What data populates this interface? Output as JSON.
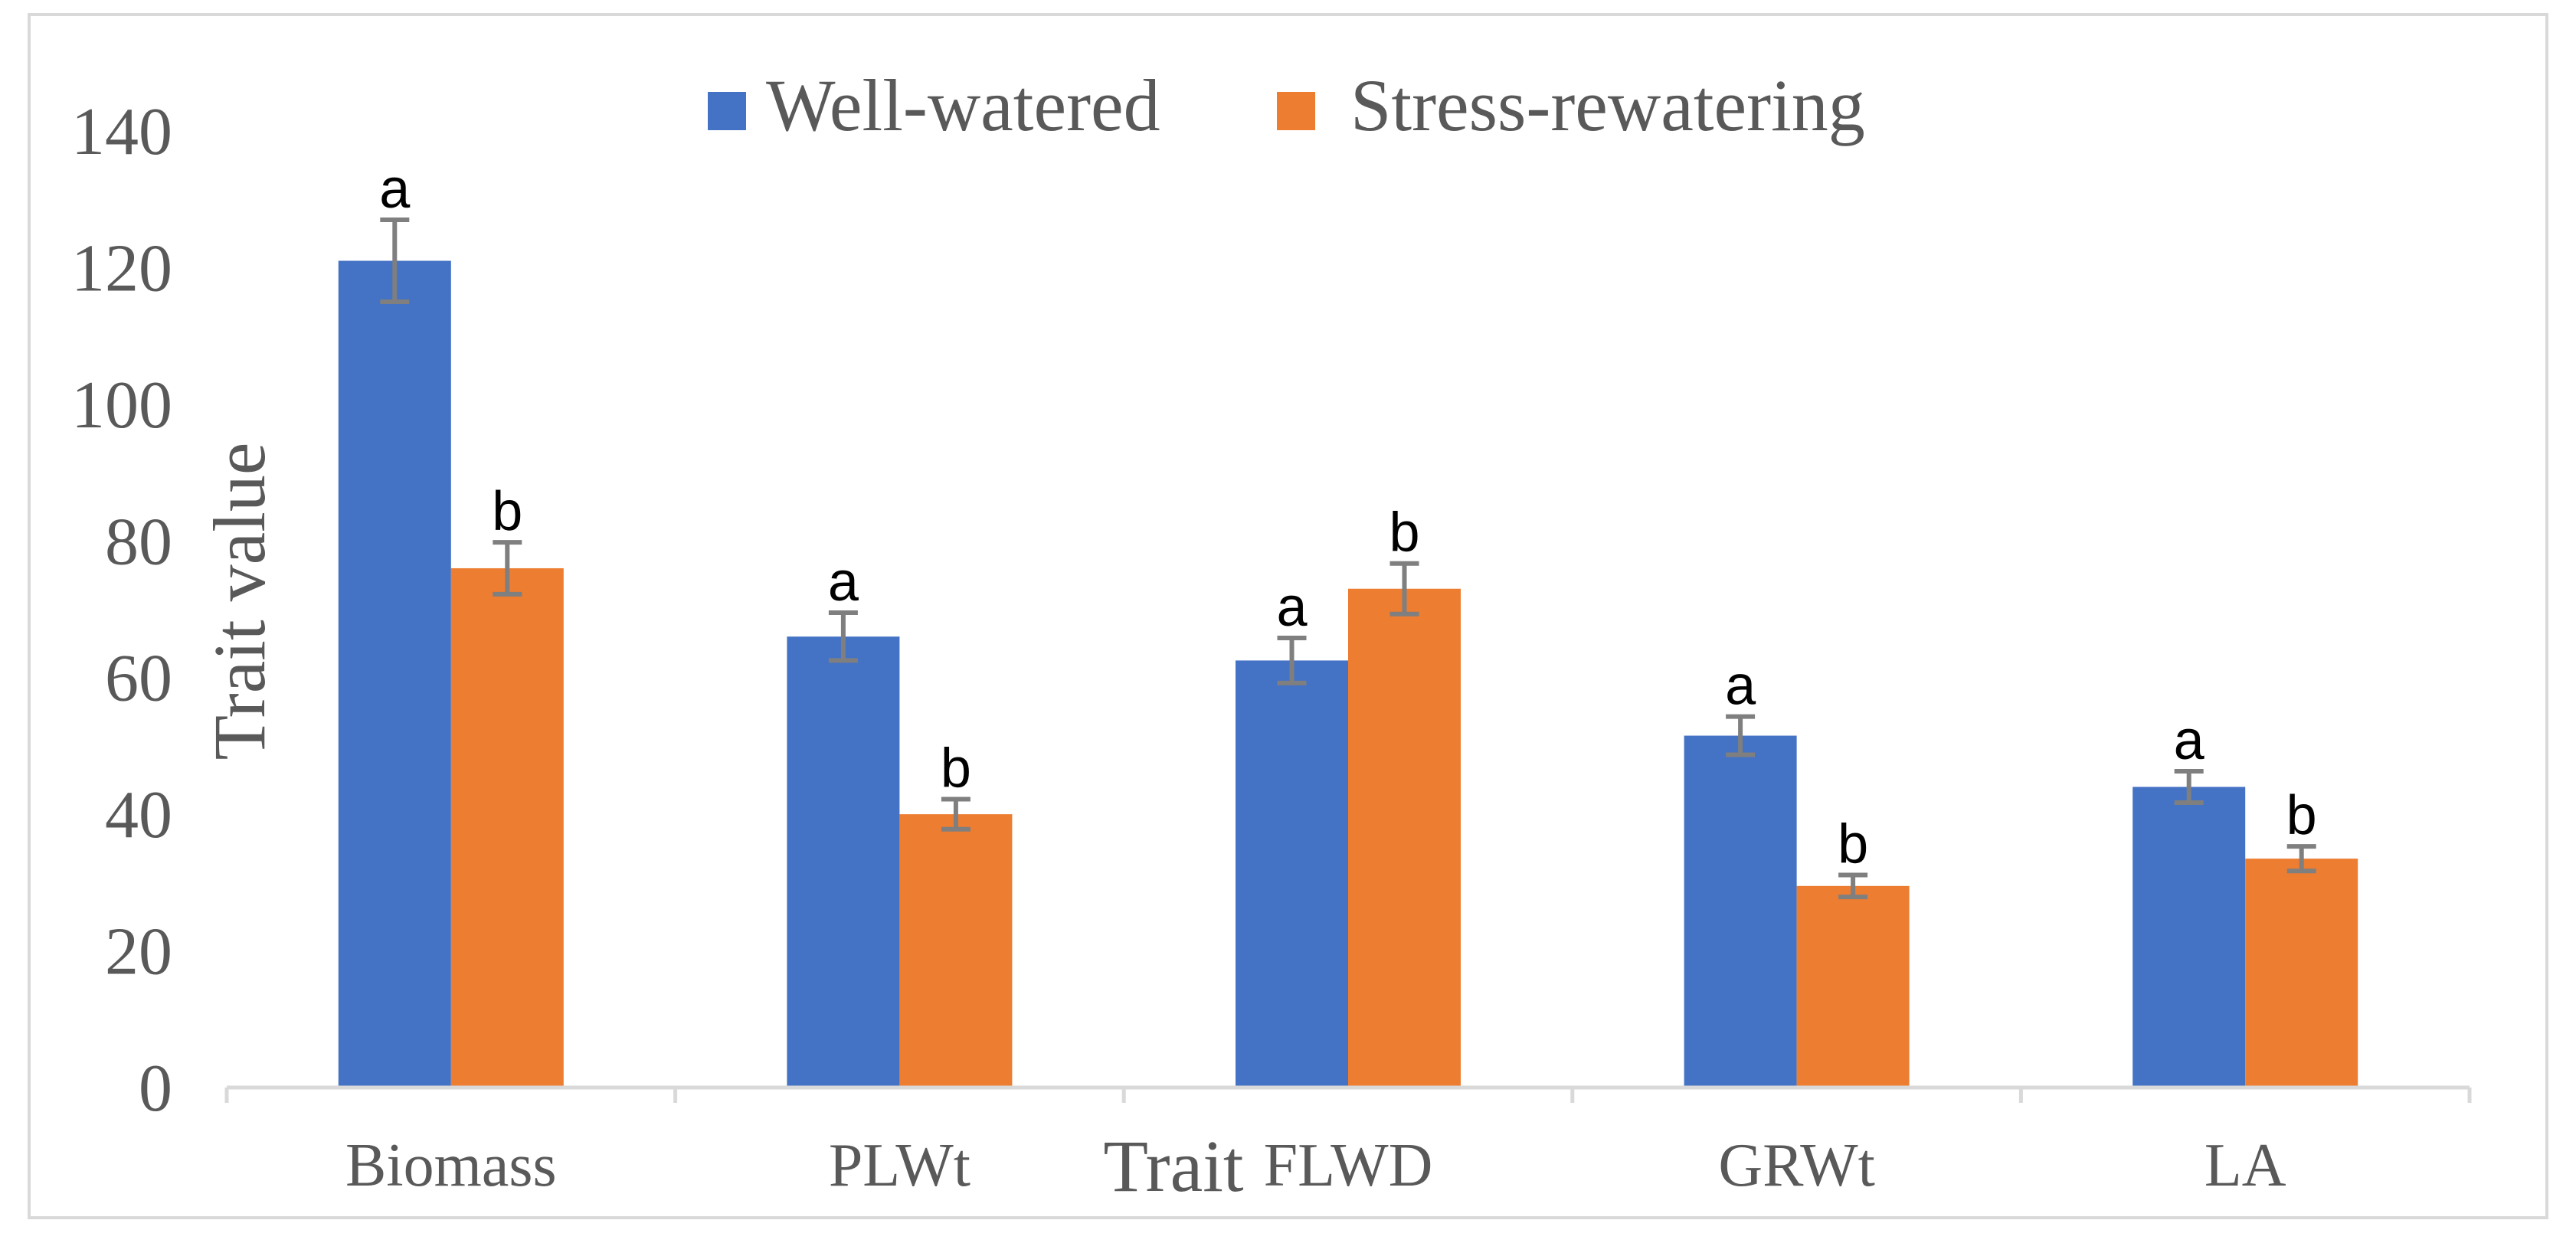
{
  "chart_data": {
    "type": "bar",
    "title": "",
    "xlabel": "Trait",
    "ylabel": "Trait value",
    "categories": [
      "Biomass",
      "PLWt",
      "FLWD",
      "GRWt",
      "LA"
    ],
    "ylim": [
      0,
      140
    ],
    "yticks": [
      0,
      20,
      40,
      60,
      80,
      100,
      120,
      140
    ],
    "grid": false,
    "legend_position": "top-center",
    "series": [
      {
        "name": "Well-watered",
        "color": "#4472C4",
        "values": [
          121,
          66,
          62.5,
          51.5,
          44
        ],
        "errors": [
          6,
          3.5,
          3.3,
          2.8,
          2.3
        ],
        "letters": [
          "a",
          "a",
          "a",
          "a",
          "a"
        ]
      },
      {
        "name": "Stress-rewatering",
        "color": "#ED7D31",
        "values": [
          76,
          40,
          73,
          29.5,
          33.5
        ],
        "errors": [
          3.8,
          2.2,
          3.7,
          1.6,
          1.8
        ],
        "letters": [
          "b",
          "b",
          "b",
          "b",
          "b"
        ]
      }
    ],
    "error_bar_color": "#7F7F7F",
    "axis_color": "#D9D9D9",
    "text_color": "#595959"
  }
}
